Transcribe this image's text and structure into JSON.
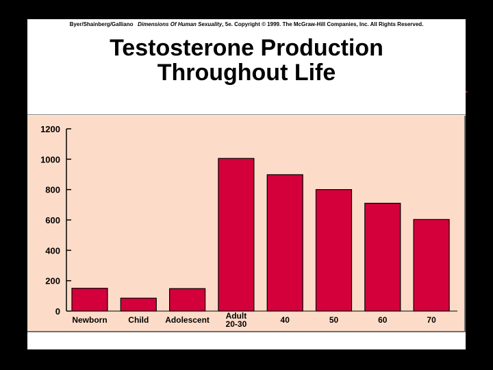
{
  "header": {
    "authors": "Byer/Shainberg/Galliano",
    "book_title": "Dimensions Of Human Sexuality",
    "edition_copyright": ", 5e. Copyright © 1999. The McGraw-Hill Companies, Inc. All Rights Reserved."
  },
  "title_line1": "Testosterone Production",
  "title_line2": "Throughout Life",
  "colors": {
    "bar": "#d4003c",
    "plot_background": "#fcdcc8",
    "slide_background": "#ffffff",
    "border": "#000000"
  },
  "chart_data": {
    "type": "bar",
    "categories": [
      "Newborn",
      "Child",
      "Adolescent",
      "Adult 20-30",
      "40",
      "50",
      "60",
      "70"
    ],
    "category_lines": [
      [
        "Newborn"
      ],
      [
        "Child"
      ],
      [
        "Adolescent"
      ],
      [
        "Adult",
        "20-30"
      ],
      [
        "40"
      ],
      [
        "50"
      ],
      [
        "60"
      ],
      [
        "70"
      ]
    ],
    "values": [
      150,
      85,
      148,
      1005,
      898,
      800,
      710,
      603
    ],
    "ylim": [
      0,
      1200
    ],
    "yticks": [
      0,
      200,
      400,
      600,
      800,
      1000,
      1200
    ],
    "grid": false,
    "title": "",
    "xlabel": "",
    "ylabel": ""
  }
}
